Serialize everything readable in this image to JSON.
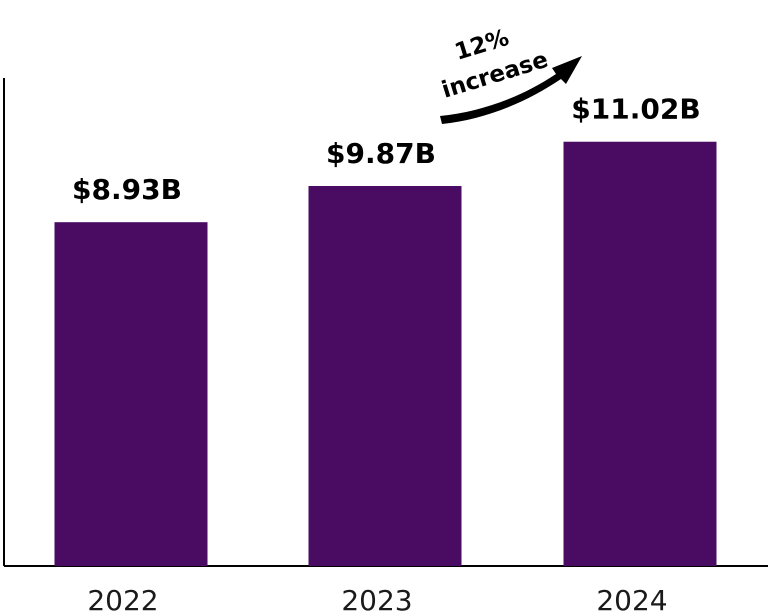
{
  "chart_data": {
    "type": "bar",
    "categories": [
      "2022",
      "2023",
      "2024"
    ],
    "values": [
      8.93,
      9.87,
      11.02
    ],
    "value_labels": [
      "$8.93B",
      "$9.87B",
      "$11.02B"
    ],
    "title": "",
    "xlabel": "",
    "ylabel": "",
    "ylim": [
      0,
      12.0
    ],
    "grid": false,
    "bar_color": "#4a0b63",
    "annotation": {
      "line1": "12%",
      "line2": "increase",
      "from_category": "2023",
      "to_category": "2024"
    }
  }
}
